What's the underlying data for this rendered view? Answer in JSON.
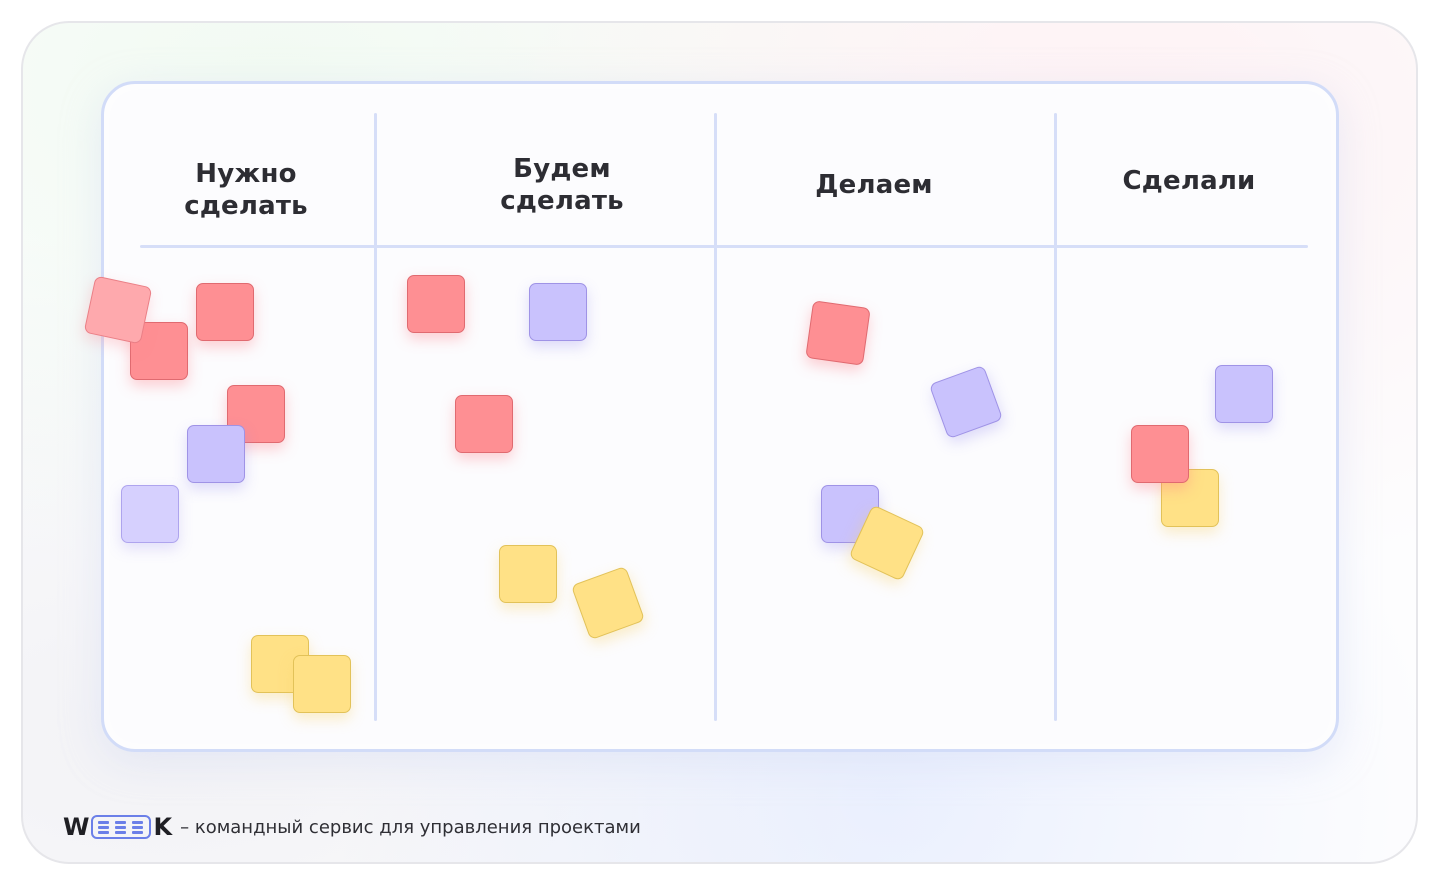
{
  "board": {
    "columns": [
      {
        "id": "todo",
        "title": "Нужно\nсделать"
      },
      {
        "id": "will-do",
        "title": "Будем\nсделать"
      },
      {
        "id": "doing",
        "title": "Делаем"
      },
      {
        "id": "done",
        "title": "Сделали"
      }
    ]
  },
  "colors": {
    "red": "#fe8f93",
    "purple": "#c9c2fd",
    "yellow": "#ffe186",
    "accent": "#6b7fe8"
  },
  "footer": {
    "logo_left": "W",
    "logo_right": "K",
    "tagline": "– командный сервис для управления проектами"
  }
}
